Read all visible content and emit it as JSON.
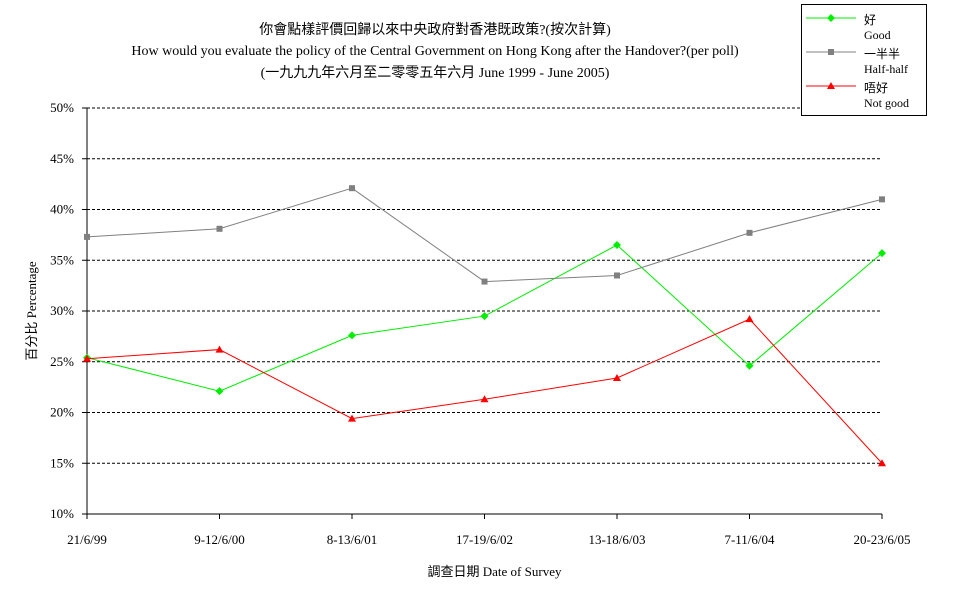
{
  "title": {
    "zh": "你會點樣評價回歸以來中央政府對香港既政策?(按次計算)",
    "en": "How would you evaluate the policy of the Central Government on Hong Kong after the Handover?(per poll)",
    "range": "(一九九九年六月至二零零五年六月 June 1999 - June 2005)"
  },
  "chart_data": {
    "type": "line",
    "categories": [
      "21/6/99",
      "9-12/6/00",
      "8-13/6/01",
      "17-19/6/02",
      "13-18/6/03",
      "7-11/6/04",
      "20-23/6/05"
    ],
    "series": [
      {
        "name": "好",
        "name_en": "Good",
        "color": "#00ee00",
        "marker": "diamond",
        "values": [
          25.4,
          22.1,
          27.6,
          29.5,
          36.5,
          24.6,
          35.7
        ]
      },
      {
        "name": "一半半",
        "name_en": "Half-half",
        "color": "#808080",
        "marker": "square",
        "values": [
          37.3,
          38.1,
          42.1,
          32.9,
          33.5,
          37.7,
          41.0
        ]
      },
      {
        "name": "唔好",
        "name_en": "Not good",
        "color": "#ff0000",
        "marker": "triangle",
        "values": [
          25.3,
          26.2,
          19.4,
          21.3,
          23.4,
          29.2,
          15.0
        ]
      }
    ],
    "ylim": [
      10,
      50
    ],
    "yticks": [
      10,
      15,
      20,
      25,
      30,
      35,
      40,
      45,
      50
    ],
    "ytick_labels": [
      "10%",
      "15%",
      "20%",
      "25%",
      "30%",
      "35%",
      "40%",
      "45%",
      "50%"
    ],
    "xlabel": "調查日期 Date of Survey",
    "ylabel": "百分比 Percentage",
    "grid": "horizontal dashed",
    "legend_position": "top-right"
  }
}
